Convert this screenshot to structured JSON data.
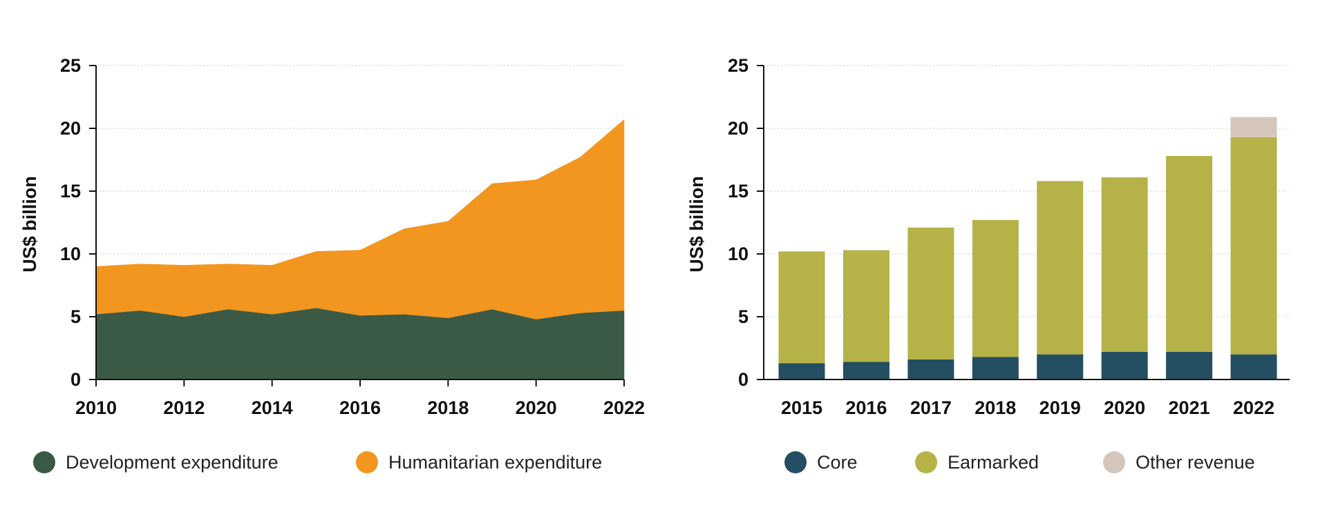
{
  "chart_data": [
    {
      "type": "area",
      "stacked": true,
      "x": [
        2010,
        2011,
        2012,
        2013,
        2014,
        2015,
        2016,
        2017,
        2018,
        2019,
        2020,
        2021,
        2022
      ],
      "x_tick_labels": [
        "2010",
        "2012",
        "2014",
        "2016",
        "2018",
        "2020",
        "2022"
      ],
      "series": [
        {
          "name": "Development expenditure",
          "color": "#3a5a46",
          "values": [
            5.2,
            5.5,
            5.0,
            5.6,
            5.2,
            5.7,
            5.1,
            5.2,
            4.9,
            5.6,
            4.8,
            5.3,
            5.5
          ]
        },
        {
          "name": "Humanitarian expenditure",
          "color": "#f2961f",
          "values": [
            3.8,
            3.7,
            4.1,
            3.6,
            3.9,
            4.5,
            5.2,
            6.8,
            7.7,
            10.0,
            11.1,
            12.4,
            15.2
          ]
        }
      ],
      "ylabel": "US$ billion",
      "ylim": [
        0,
        25
      ],
      "y_ticks": [
        "0",
        "5",
        "10",
        "15",
        "20",
        "25"
      ],
      "grid": true,
      "legend_position": "bottom"
    },
    {
      "type": "bar",
      "stacked": true,
      "categories": [
        "2015",
        "2016",
        "2017",
        "2018",
        "2019",
        "2020",
        "2021",
        "2022"
      ],
      "series": [
        {
          "name": "Core",
          "color": "#244e61",
          "values": [
            1.3,
            1.4,
            1.6,
            1.8,
            2.0,
            2.2,
            2.2,
            2.0
          ]
        },
        {
          "name": "Earmarked",
          "color": "#b5b348",
          "values": [
            8.9,
            8.9,
            10.5,
            10.9,
            13.8,
            13.9,
            15.6,
            17.3
          ]
        },
        {
          "name": "Other revenue",
          "color": "#d4c6bb",
          "values": [
            0,
            0,
            0,
            0,
            0,
            0,
            0,
            1.6
          ]
        }
      ],
      "ylabel": "US$ billion",
      "ylim": [
        0,
        25
      ],
      "y_ticks": [
        "0",
        "5",
        "10",
        "15",
        "20",
        "25"
      ],
      "grid": true,
      "legend_position": "bottom"
    }
  ]
}
